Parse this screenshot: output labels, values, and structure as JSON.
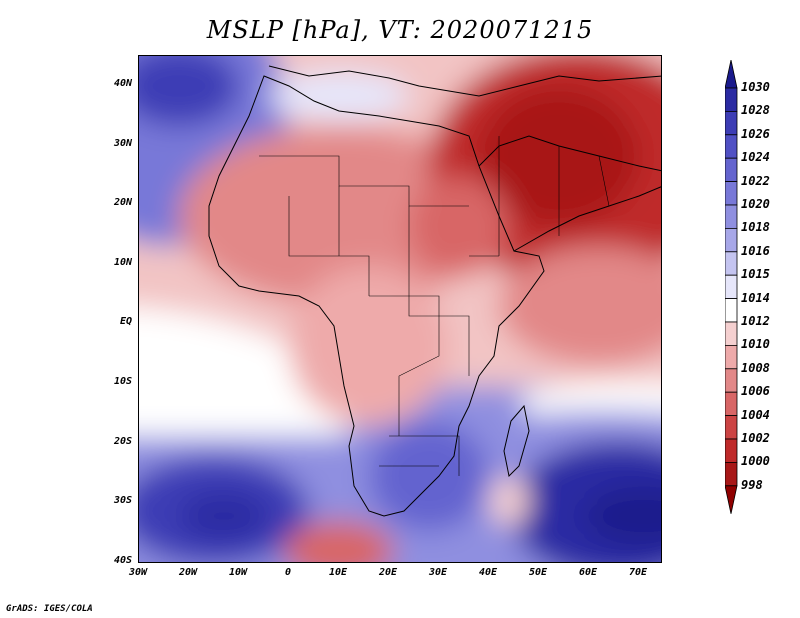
{
  "title": "MSLP [hPa], VT: 2020071215",
  "credit": "GrADS: IGES/COLA",
  "lat_labels": [
    "40N",
    "30N",
    "20N",
    "10N",
    "EQ",
    "10S",
    "20S",
    "30S",
    "40S"
  ],
  "lon_labels": [
    "30W",
    "20W",
    "10W",
    "0",
    "10E",
    "20E",
    "30E",
    "40E",
    "50E",
    "60E",
    "70E"
  ],
  "colorbar": {
    "levels": [
      "1030",
      "1028",
      "1026",
      "1024",
      "1022",
      "1020",
      "1018",
      "1016",
      "1015",
      "1014",
      "1012",
      "1010",
      "1008",
      "1006",
      "1004",
      "1002",
      "1000",
      "998"
    ],
    "colors": [
      "#1a1a8c",
      "#2b2ba3",
      "#3d3db5",
      "#5050c4",
      "#6464cf",
      "#7878d8",
      "#8f8fe0",
      "#a7a7e8",
      "#c4c4f0",
      "#e6e6fa",
      "#ffffff",
      "#f5d0d0",
      "#eeaaaa",
      "#e28888",
      "#d86666",
      "#cc4444",
      "#bf2a2a",
      "#a81818",
      "#900000"
    ]
  }
}
